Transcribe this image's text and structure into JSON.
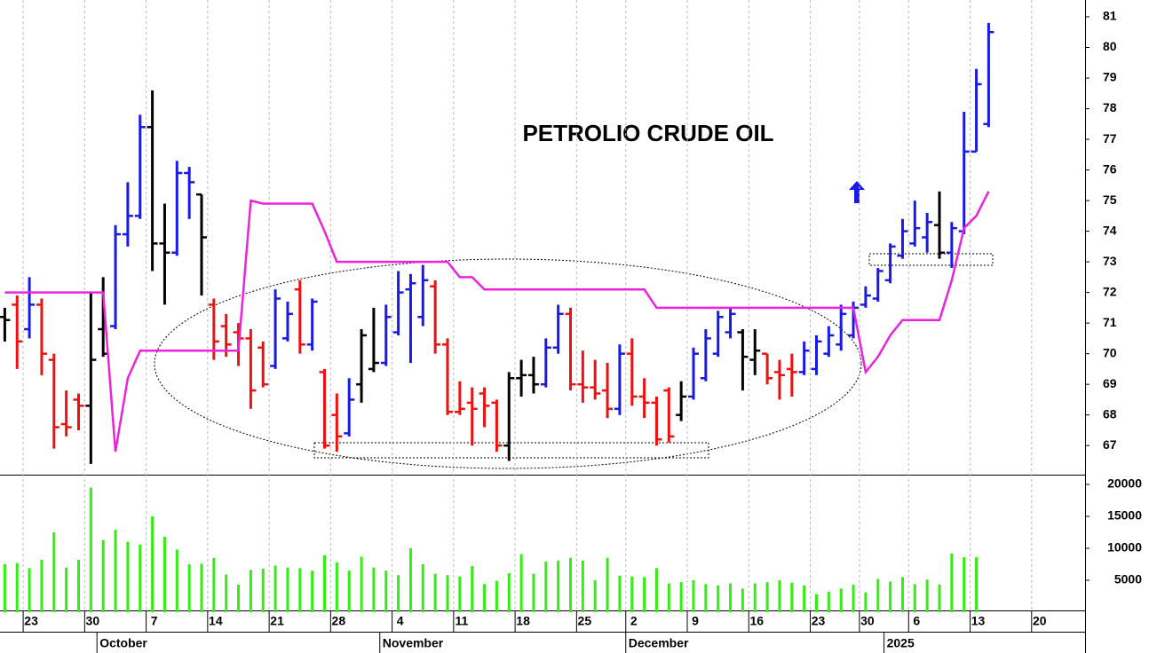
{
  "chart_data": {
    "type": "ohlc",
    "title": "PETROLIO CRUDE OIL",
    "categories": [
      null,
      null,
      "23",
      null,
      null,
      null,
      null,
      "30",
      null,
      null,
      null,
      null,
      "7",
      null,
      null,
      null,
      null,
      "14",
      null,
      null,
      null,
      null,
      "21",
      null,
      null,
      null,
      null,
      "28",
      null,
      null,
      null,
      null,
      "4",
      null,
      null,
      null,
      null,
      "11",
      null,
      null,
      null,
      null,
      "18",
      null,
      null,
      null,
      null,
      "25",
      null,
      null,
      null,
      "2",
      null,
      null,
      null,
      null,
      "9",
      null,
      null,
      null,
      null,
      "16",
      null,
      null,
      null,
      null,
      "23",
      null,
      null,
      null,
      "30",
      null,
      null,
      null,
      "6",
      null,
      null,
      null,
      null,
      "13",
      null,
      null,
      null,
      null,
      "20"
    ],
    "months": [
      {
        "label": "October",
        "category": 8
      },
      {
        "label": "November",
        "category": 31
      },
      {
        "label": "December",
        "category": 51
      },
      {
        "label": "2025",
        "category": 72
      }
    ],
    "open": [
      71.2,
      71.6,
      70.8,
      71.6,
      69.8,
      67.7,
      68.5,
      68.3,
      70.8,
      70.9,
      73.9,
      74.5,
      77.4,
      73.6,
      73.3,
      75.9,
      75.2,
      71.6,
      70.9,
      70.7,
      70.5,
      70.2,
      69.6,
      70.5,
      72.1,
      70.3,
      69.4,
      68.0,
      67.4,
      69.0,
      69.5,
      69.7,
      70.7,
      72.1,
      71.2,
      72.2,
      70.3,
      68.1,
      68.4,
      68.7,
      68.4,
      67.0,
      69.2,
      69.3,
      69.0,
      70.2,
      71.3,
      69.0,
      68.9,
      68.8,
      68.2,
      70.0,
      68.6,
      68.4,
      68.8,
      68.0,
      68.6,
      69.2,
      70.0,
      70.7,
      70.7,
      69.8,
      70.0,
      69.4,
      69.5,
      69.4,
      69.5,
      70.0,
      70.3,
      70.6,
      71.6,
      71.8,
      72.4,
      73.2,
      73.6,
      73.8,
      74.2,
      73.3,
      74.0,
      76.6,
      77.5,
      null,
      null,
      null,
      null
    ],
    "high": [
      71.5,
      71.9,
      72.5,
      71.8,
      70.0,
      68.8,
      68.7,
      72.0,
      72.5,
      74.2,
      75.6,
      77.8,
      78.6,
      74.9,
      76.3,
      76.1,
      75.2,
      71.8,
      71.3,
      71.0,
      70.8,
      70.4,
      72.1,
      71.7,
      72.4,
      71.8,
      69.5,
      68.7,
      69.2,
      70.8,
      71.5,
      71.6,
      72.7,
      72.6,
      72.9,
      72.4,
      70.5,
      69.1,
      68.9,
      68.9,
      68.5,
      69.4,
      69.8,
      69.9,
      70.5,
      71.6,
      71.5,
      70.1,
      69.8,
      69.7,
      70.3,
      70.5,
      69.2,
      68.6,
      68.9,
      69.1,
      70.2,
      70.8,
      71.4,
      71.5,
      70.8,
      70.8,
      70.0,
      69.8,
      70.0,
      70.4,
      70.6,
      70.9,
      71.6,
      71.7,
      72.2,
      72.8,
      73.6,
      74.4,
      75.0,
      74.6,
      75.3,
      74.3,
      77.9,
      79.3,
      80.8,
      null,
      null,
      null,
      null
    ],
    "low": [
      70.4,
      69.5,
      70.5,
      69.3,
      66.9,
      67.3,
      67.5,
      66.4,
      69.9,
      70.8,
      73.5,
      74.4,
      72.7,
      71.6,
      73.2,
      74.4,
      71.9,
      69.8,
      69.9,
      69.6,
      68.2,
      68.9,
      69.5,
      70.4,
      70.0,
      70.1,
      66.9,
      66.8,
      67.3,
      68.4,
      69.4,
      69.6,
      70.6,
      69.7,
      70.9,
      70.0,
      68.0,
      68.0,
      67.0,
      67.6,
      66.8,
      66.5,
      68.6,
      68.7,
      68.9,
      70.0,
      68.8,
      68.4,
      68.5,
      67.9,
      68.0,
      68.3,
      67.9,
      67.0,
      67.1,
      67.8,
      68.5,
      69.1,
      69.9,
      70.5,
      68.8,
      69.3,
      69.0,
      68.5,
      68.6,
      69.3,
      69.3,
      69.9,
      70.1,
      70.5,
      71.5,
      71.7,
      72.3,
      73.1,
      73.5,
      73.3,
      73.1,
      72.8,
      73.9,
      76.6,
      77.4,
      null,
      null,
      null,
      null
    ],
    "close": [
      71.1,
      70.4,
      71.6,
      70.0,
      67.6,
      67.6,
      68.3,
      69.8,
      70.0,
      73.9,
      74.5,
      77.4,
      73.6,
      73.3,
      75.9,
      75.6,
      73.8,
      70.4,
      70.3,
      70.5,
      68.8,
      69.0,
      71.8,
      71.3,
      70.3,
      71.7,
      67.0,
      67.3,
      68.5,
      70.6,
      69.7,
      71.2,
      72.0,
      72.3,
      72.4,
      70.3,
      68.1,
      68.2,
      68.2,
      68.3,
      67.0,
      69.2,
      69.3,
      69.0,
      70.2,
      71.3,
      69.0,
      68.9,
      68.7,
      68.2,
      70.0,
      68.6,
      68.4,
      67.2,
      67.3,
      68.6,
      70.0,
      70.5,
      71.2,
      71.3,
      69.9,
      70.1,
      69.2,
      69.3,
      69.4,
      70.1,
      70.4,
      70.6,
      71.3,
      71.5,
      71.9,
      72.7,
      73.5,
      74.0,
      74.1,
      74.3,
      73.3,
      74.1,
      76.6,
      78.8,
      80.5,
      null,
      null,
      null,
      null
    ],
    "colors": [
      "#000000",
      "#ee1111",
      "#1a1ae6",
      "#ee1111",
      "#ee1111",
      "#ee1111",
      "#ee1111",
      "#000000",
      "#000000",
      "#1a1ae6",
      "#1a1ae6",
      "#1a1ae6",
      "#000000",
      "#000000",
      "#1a1ae6",
      "#1a1ae6",
      "#000000",
      "#ee1111",
      "#ee1111",
      "#ee1111",
      "#ee1111",
      "#ee1111",
      "#1a1ae6",
      "#1a1ae6",
      "#ee1111",
      "#1a1ae6",
      "#ee1111",
      "#ee1111",
      "#1a1ae6",
      "#000000",
      "#000000",
      "#1a1ae6",
      "#1a1ae6",
      "#1a1ae6",
      "#1a1ae6",
      "#ee1111",
      "#ee1111",
      "#ee1111",
      "#ee1111",
      "#ee1111",
      "#ee1111",
      "#000000",
      "#000000",
      "#000000",
      "#1a1ae6",
      "#1a1ae6",
      "#ee1111",
      "#ee1111",
      "#ee1111",
      "#ee1111",
      "#1a1ae6",
      "#ee1111",
      "#ee1111",
      "#ee1111",
      "#ee1111",
      "#000000",
      "#1a1ae6",
      "#1a1ae6",
      "#1a1ae6",
      "#1a1ae6",
      "#000000",
      "#000000",
      "#ee1111",
      "#ee1111",
      "#ee1111",
      "#1a1ae6",
      "#1a1ae6",
      "#1a1ae6",
      "#1a1ae6",
      "#1a1ae6",
      "#1a1ae6",
      "#1a1ae6",
      "#1a1ae6",
      "#1a1ae6",
      "#1a1ae6",
      "#1a1ae6",
      "#000000",
      "#1a1ae6",
      "#1a1ae6",
      "#1a1ae6",
      "#1a1ae6",
      null,
      null,
      null,
      null
    ],
    "stop": {
      "color": "#ee22dd",
      "values": [
        72.0,
        72.0,
        72.0,
        72.0,
        72.0,
        72.0,
        72.0,
        72.0,
        72.0,
        66.8,
        69.2,
        70.1,
        70.1,
        70.1,
        70.1,
        70.1,
        70.1,
        70.1,
        70.1,
        70.1,
        75.0,
        74.9,
        74.9,
        74.9,
        74.9,
        74.9,
        74.0,
        73.0,
        73.0,
        73.0,
        73.0,
        73.0,
        73.0,
        73.0,
        73.0,
        73.0,
        73.0,
        72.5,
        72.5,
        72.1,
        72.1,
        72.1,
        72.1,
        72.1,
        72.1,
        72.1,
        72.1,
        72.1,
        72.1,
        72.1,
        72.1,
        72.1,
        72.1,
        71.5,
        71.5,
        71.5,
        71.5,
        71.5,
        71.5,
        71.5,
        71.5,
        71.5,
        71.5,
        71.5,
        71.5,
        71.5,
        71.5,
        71.5,
        71.5,
        71.5,
        69.4,
        69.9,
        70.6,
        71.1,
        71.1,
        71.1,
        71.1,
        72.4,
        74.1,
        74.5,
        75.3,
        null,
        null,
        null,
        null
      ]
    },
    "ylim": [
      66.05,
      81.55
    ],
    "yticks": [
      67,
      68,
      69,
      70,
      71,
      72,
      73,
      74,
      75,
      76,
      77,
      78,
      79,
      80,
      81
    ],
    "volume": {
      "color": "#33ee11",
      "values": [
        7500,
        7700,
        6900,
        8200,
        12500,
        7000,
        8200,
        19500,
        11300,
        12900,
        11000,
        10600,
        15000,
        11800,
        9800,
        7500,
        7600,
        8500,
        5900,
        4300,
        6600,
        6800,
        7300,
        7000,
        6900,
        6500,
        8900,
        7800,
        6500,
        8700,
        7000,
        6500,
        5800,
        10000,
        7500,
        6000,
        5800,
        5600,
        7200,
        4400,
        4900,
        6100,
        9100,
        6000,
        7900,
        8100,
        8500,
        8100,
        5000,
        8500,
        5700,
        5600,
        5500,
        6900,
        4500,
        4700,
        5000,
        4400,
        4200,
        4500,
        3700,
        4500,
        4700,
        5000,
        4600,
        4200,
        2800,
        3200,
        3700,
        4300,
        3100,
        5200,
        4800,
        5500,
        4400,
        5100,
        4300,
        9200,
        8600,
        8600,
        null,
        null,
        null,
        null,
        null
      ],
      "ylim": [
        0,
        21250
      ],
      "yticks": [
        5000,
        10000,
        15000,
        20000
      ]
    },
    "grid": true
  }
}
